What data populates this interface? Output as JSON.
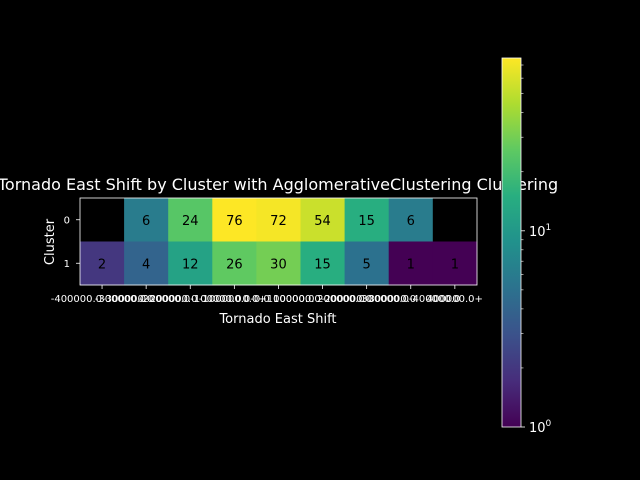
{
  "chart_data": {
    "type": "heatmap",
    "title": "Tornado East Shift by Cluster with AgglomerativeClustering Clustering",
    "xlabel": "Tornado East Shift",
    "ylabel": "Cluster",
    "x_categories": [
      "-400000.0-300000.0",
      "-300000.0-200000.0",
      "-200000.0-100000.0",
      "-100000.0-0.0",
      "0.0-100000.0",
      "100000.0-200000.0",
      "200000.0-300000.0",
      "300000.0-400000.0",
      "400000.0+"
    ],
    "x_tick_labels": [
      "-400000.0-300000.0",
      "-300000.0-200000.0",
      "-200000.0-100000.0",
      "-100000.0-0.0",
      "0.0+100000.0",
      "100000.0-200000.0",
      "200000.0-300000.0",
      "300000.0-400000.0",
      "400000.0+"
    ],
    "y_categories": [
      "0",
      "1"
    ],
    "values": [
      [
        null,
        6,
        24,
        76,
        72,
        54,
        15,
        6,
        null
      ],
      [
        2,
        4,
        12,
        26,
        30,
        15,
        5,
        1,
        1
      ]
    ],
    "colorbar": {
      "scale": "log",
      "colormap": "viridis",
      "range": [
        1,
        76
      ],
      "tick_labels": [
        "10^0",
        "10^1"
      ],
      "tick_values": [
        1,
        10
      ]
    },
    "missing_color": "#000000"
  }
}
